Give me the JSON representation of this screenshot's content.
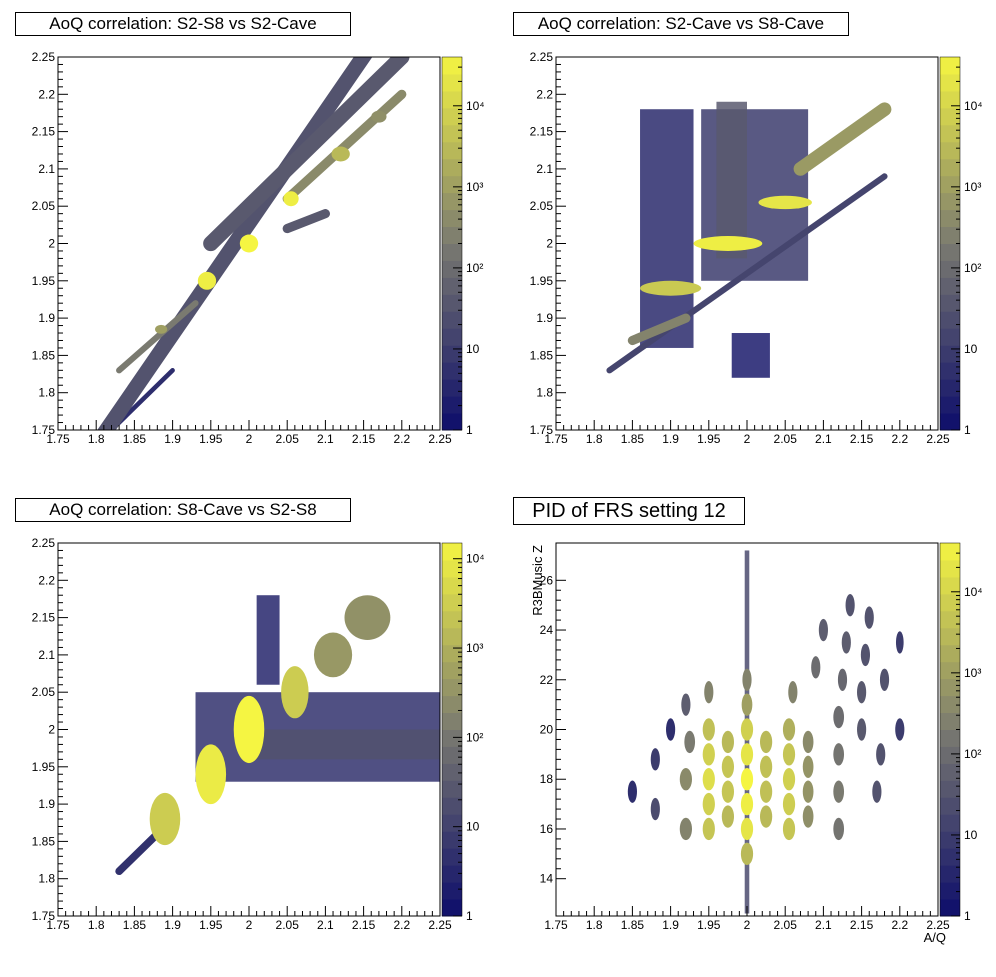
{
  "chart_data": [
    {
      "type": "heatmap",
      "title": "AoQ correlation: S2-S8 vs S2-Cave",
      "xlabel": "",
      "ylabel": "",
      "xlim": [
        1.75,
        2.25
      ],
      "ylim": [
        1.75,
        2.25
      ],
      "x_ticks": [
        "1.75",
        "1.8",
        "1.85",
        "1.9",
        "1.95",
        "2",
        "2.05",
        "2.1",
        "2.15",
        "2.2",
        "2.25"
      ],
      "y_ticks": [
        "1.75",
        "1.8",
        "1.85",
        "1.9",
        "1.95",
        "2",
        "2.05",
        "2.1",
        "2.15",
        "2.2",
        "2.25"
      ],
      "colorbar_ticks": [
        {
          "value": 1,
          "label": "1"
        },
        {
          "value": 10,
          "label": "10"
        },
        {
          "value": 100,
          "label": "10²"
        },
        {
          "value": 1000,
          "label": "10³"
        },
        {
          "value": 10000,
          "label": "10⁴"
        }
      ],
      "z_max": 40000,
      "colors": {
        "low": "#0d0d6b",
        "mid": "#7a7a70",
        "high": "#f5f542"
      },
      "features": [
        {
          "kind": "band",
          "x1": 1.78,
          "y1": 1.7,
          "x2": 2.25,
          "y2": 2.4,
          "width": 0.02,
          "z": 30
        },
        {
          "kind": "band",
          "x1": 1.95,
          "y1": 2.0,
          "x2": 2.2,
          "y2": 2.25,
          "width": 0.02,
          "z": 40
        },
        {
          "kind": "band",
          "x1": 2.05,
          "y1": 2.06,
          "x2": 2.2,
          "y2": 2.2,
          "width": 0.012,
          "z": 400
        },
        {
          "kind": "band",
          "x1": 2.05,
          "y1": 2.02,
          "x2": 2.1,
          "y2": 2.04,
          "width": 0.012,
          "z": 40
        },
        {
          "kind": "band",
          "x1": 1.83,
          "y1": 1.83,
          "x2": 1.93,
          "y2": 1.92,
          "width": 0.008,
          "z": 200
        },
        {
          "kind": "band",
          "x1": 1.82,
          "y1": 1.75,
          "x2": 1.9,
          "y2": 1.83,
          "width": 0.006,
          "z": 5
        },
        {
          "kind": "blob",
          "x": 1.885,
          "y": 1.885,
          "rx": 0.008,
          "ry": 0.006,
          "z": 1000
        },
        {
          "kind": "blob",
          "x": 1.945,
          "y": 1.95,
          "rx": 0.012,
          "ry": 0.012,
          "z": 30000
        },
        {
          "kind": "blob",
          "x": 2.0,
          "y": 2.0,
          "rx": 0.012,
          "ry": 0.012,
          "z": 40000
        },
        {
          "kind": "blob",
          "x": 2.055,
          "y": 2.06,
          "rx": 0.01,
          "ry": 0.01,
          "z": 30000
        },
        {
          "kind": "blob",
          "x": 2.12,
          "y": 2.12,
          "rx": 0.012,
          "ry": 0.01,
          "z": 3000
        },
        {
          "kind": "blob",
          "x": 2.17,
          "y": 2.17,
          "rx": 0.01,
          "ry": 0.008,
          "z": 500
        }
      ]
    },
    {
      "type": "heatmap",
      "title": "AoQ correlation: S2-Cave vs S8-Cave",
      "xlabel": "",
      "ylabel": "",
      "xlim": [
        1.75,
        2.25
      ],
      "ylim": [
        1.75,
        2.25
      ],
      "x_ticks": [
        "1.75",
        "1.8",
        "1.85",
        "1.9",
        "1.95",
        "2",
        "2.05",
        "2.1",
        "2.15",
        "2.2",
        "2.25"
      ],
      "y_ticks": [
        "1.75",
        "1.8",
        "1.85",
        "1.9",
        "1.95",
        "2",
        "2.05",
        "2.1",
        "2.15",
        "2.2",
        "2.25"
      ],
      "colorbar_ticks": [
        {
          "value": 1,
          "label": "1"
        },
        {
          "value": 10,
          "label": "10"
        },
        {
          "value": 100,
          "label": "10²"
        },
        {
          "value": 1000,
          "label": "10³"
        },
        {
          "value": 10000,
          "label": "10⁴"
        }
      ],
      "z_max": 40000,
      "colors": {
        "low": "#0d0d6b",
        "mid": "#7a7a70",
        "high": "#f5f542"
      },
      "features": [
        {
          "kind": "rect",
          "x1": 1.86,
          "y1": 1.86,
          "x2": 1.93,
          "y2": 2.18,
          "z": 4
        },
        {
          "kind": "rect",
          "x1": 1.94,
          "y1": 1.95,
          "x2": 2.08,
          "y2": 2.18,
          "z": 10
        },
        {
          "kind": "rect",
          "x1": 1.96,
          "y1": 1.98,
          "x2": 2.0,
          "y2": 2.19,
          "z": 40
        },
        {
          "kind": "band",
          "x1": 1.85,
          "y1": 1.87,
          "x2": 1.92,
          "y2": 1.9,
          "width": 0.012,
          "z": 300
        },
        {
          "kind": "blob",
          "x": 1.9,
          "y": 1.94,
          "rx": 0.04,
          "ry": 0.01,
          "z": 6000
        },
        {
          "kind": "blob",
          "x": 1.975,
          "y": 2.0,
          "rx": 0.045,
          "ry": 0.01,
          "z": 30000
        },
        {
          "kind": "blob",
          "x": 2.05,
          "y": 2.055,
          "rx": 0.035,
          "ry": 0.009,
          "z": 20000
        },
        {
          "kind": "band",
          "x1": 2.07,
          "y1": 2.1,
          "x2": 2.18,
          "y2": 2.18,
          "width": 0.018,
          "z": 800
        },
        {
          "kind": "band",
          "x1": 1.82,
          "y1": 1.83,
          "x2": 2.18,
          "y2": 2.09,
          "width": 0.008,
          "z": 15
        },
        {
          "kind": "rect",
          "x1": 1.98,
          "y1": 1.82,
          "x2": 2.03,
          "y2": 1.88,
          "z": 2
        }
      ]
    },
    {
      "type": "heatmap",
      "title": "AoQ correlation: S8-Cave vs S2-S8",
      "xlabel": "",
      "ylabel": "",
      "xlim": [
        1.75,
        2.25
      ],
      "ylim": [
        1.75,
        2.25
      ],
      "x_ticks": [
        "1.75",
        "1.8",
        "1.85",
        "1.9",
        "1.95",
        "2",
        "2.05",
        "2.1",
        "2.15",
        "2.2",
        "2.25"
      ],
      "y_ticks": [
        "1.75",
        "1.8",
        "1.85",
        "1.9",
        "1.95",
        "2",
        "2.05",
        "2.1",
        "2.15",
        "2.2",
        "2.25"
      ],
      "colorbar_ticks": [
        {
          "value": 1,
          "label": "1"
        },
        {
          "value": 10,
          "label": "10"
        },
        {
          "value": 100,
          "label": "10²"
        },
        {
          "value": 1000,
          "label": "10³"
        },
        {
          "value": 10000,
          "label": "10⁴"
        }
      ],
      "z_max": 15000,
      "colors": {
        "low": "#0d0d6b",
        "mid": "#7a7a70",
        "high": "#f5f542"
      },
      "features": [
        {
          "kind": "rect",
          "x1": 1.93,
          "y1": 1.93,
          "x2": 2.25,
          "y2": 2.05,
          "z": 5
        },
        {
          "kind": "rect",
          "x1": 2.0,
          "y1": 1.96,
          "x2": 2.25,
          "y2": 2.0,
          "z": 20
        },
        {
          "kind": "rect",
          "x1": 2.01,
          "y1": 2.06,
          "x2": 2.04,
          "y2": 2.18,
          "z": 3
        },
        {
          "kind": "band",
          "x1": 1.83,
          "y1": 1.81,
          "x2": 1.9,
          "y2": 1.88,
          "width": 0.01,
          "z": 5
        },
        {
          "kind": "blob",
          "x": 1.89,
          "y": 1.88,
          "rx": 0.02,
          "ry": 0.035,
          "z": 3000
        },
        {
          "kind": "blob",
          "x": 1.95,
          "y": 1.94,
          "rx": 0.02,
          "ry": 0.04,
          "z": 10000
        },
        {
          "kind": "blob",
          "x": 2.0,
          "y": 2.0,
          "rx": 0.02,
          "ry": 0.045,
          "z": 15000
        },
        {
          "kind": "blob",
          "x": 2.06,
          "y": 2.05,
          "rx": 0.018,
          "ry": 0.035,
          "z": 3000
        },
        {
          "kind": "blob",
          "x": 2.11,
          "y": 2.1,
          "rx": 0.025,
          "ry": 0.03,
          "z": 400
        },
        {
          "kind": "blob",
          "x": 2.155,
          "y": 2.15,
          "rx": 0.03,
          "ry": 0.03,
          "z": 300
        }
      ]
    },
    {
      "type": "heatmap",
      "title": "PID of FRS setting 12",
      "xlabel": "A/Q",
      "ylabel": "R3BMusic Z",
      "xlim": [
        1.75,
        2.25
      ],
      "ylim": [
        12.5,
        27.5
      ],
      "x_ticks": [
        "1.75",
        "1.8",
        "1.85",
        "1.9",
        "1.95",
        "2",
        "2.05",
        "2.1",
        "2.15",
        "2.2",
        "2.25"
      ],
      "y_ticks": [
        "14",
        "16",
        "18",
        "20",
        "22",
        "24",
        "26"
      ],
      "colorbar_ticks": [
        {
          "value": 1,
          "label": "1"
        },
        {
          "value": 10,
          "label": "10"
        },
        {
          "value": 100,
          "label": "10²"
        },
        {
          "value": 1000,
          "label": "10³"
        },
        {
          "value": 10000,
          "label": "10⁴"
        }
      ],
      "z_max": 40000,
      "colors": {
        "low": "#0d0d6b",
        "mid": "#7a7a70",
        "high": "#f5f542"
      },
      "features": [
        {
          "kind": "blob",
          "x": 1.85,
          "y": 17.5,
          "rx": 0.006,
          "ry": 0.45,
          "z": 5
        },
        {
          "kind": "blob",
          "x": 1.88,
          "y": 16.8,
          "rx": 0.006,
          "ry": 0.45,
          "z": 20
        },
        {
          "kind": "blob",
          "x": 1.88,
          "y": 18.8,
          "rx": 0.006,
          "ry": 0.45,
          "z": 10
        },
        {
          "kind": "blob",
          "x": 1.9,
          "y": 20.0,
          "rx": 0.006,
          "ry": 0.45,
          "z": 5
        },
        {
          "kind": "blob",
          "x": 1.92,
          "y": 16.0,
          "rx": 0.008,
          "ry": 0.45,
          "z": 300
        },
        {
          "kind": "blob",
          "x": 1.92,
          "y": 18.0,
          "rx": 0.008,
          "ry": 0.45,
          "z": 400
        },
        {
          "kind": "blob",
          "x": 1.925,
          "y": 19.5,
          "rx": 0.007,
          "ry": 0.45,
          "z": 200
        },
        {
          "kind": "blob",
          "x": 1.92,
          "y": 21.0,
          "rx": 0.006,
          "ry": 0.45,
          "z": 50
        },
        {
          "kind": "blob",
          "x": 1.95,
          "y": 16.0,
          "rx": 0.008,
          "ry": 0.45,
          "z": 5000
        },
        {
          "kind": "blob",
          "x": 1.95,
          "y": 17.0,
          "rx": 0.008,
          "ry": 0.45,
          "z": 8000
        },
        {
          "kind": "blob",
          "x": 1.95,
          "y": 18.0,
          "rx": 0.008,
          "ry": 0.45,
          "z": 15000
        },
        {
          "kind": "blob",
          "x": 1.95,
          "y": 19.0,
          "rx": 0.008,
          "ry": 0.45,
          "z": 8000
        },
        {
          "kind": "blob",
          "x": 1.95,
          "y": 20.0,
          "rx": 0.008,
          "ry": 0.45,
          "z": 4000
        },
        {
          "kind": "blob",
          "x": 1.95,
          "y": 21.5,
          "rx": 0.006,
          "ry": 0.45,
          "z": 300
        },
        {
          "kind": "blob",
          "x": 1.975,
          "y": 16.5,
          "rx": 0.008,
          "ry": 0.45,
          "z": 3000
        },
        {
          "kind": "blob",
          "x": 1.975,
          "y": 17.5,
          "rx": 0.008,
          "ry": 0.45,
          "z": 5000
        },
        {
          "kind": "blob",
          "x": 1.975,
          "y": 18.5,
          "rx": 0.008,
          "ry": 0.45,
          "z": 5000
        },
        {
          "kind": "blob",
          "x": 1.975,
          "y": 19.5,
          "rx": 0.008,
          "ry": 0.45,
          "z": 3000
        },
        {
          "kind": "blob",
          "x": 2.0,
          "y": 15.0,
          "rx": 0.008,
          "ry": 0.45,
          "z": 3000
        },
        {
          "kind": "blob",
          "x": 2.0,
          "y": 16.0,
          "rx": 0.008,
          "ry": 0.45,
          "z": 20000
        },
        {
          "kind": "blob",
          "x": 2.0,
          "y": 17.0,
          "rx": 0.008,
          "ry": 0.45,
          "z": 30000
        },
        {
          "kind": "blob",
          "x": 2.0,
          "y": 18.0,
          "rx": 0.008,
          "ry": 0.45,
          "z": 40000
        },
        {
          "kind": "blob",
          "x": 2.0,
          "y": 19.0,
          "rx": 0.008,
          "ry": 0.45,
          "z": 20000
        },
        {
          "kind": "blob",
          "x": 2.0,
          "y": 20.0,
          "rx": 0.008,
          "ry": 0.45,
          "z": 8000
        },
        {
          "kind": "blob",
          "x": 2.0,
          "y": 21.0,
          "rx": 0.007,
          "ry": 0.45,
          "z": 1000
        },
        {
          "kind": "blob",
          "x": 2.0,
          "y": 22.0,
          "rx": 0.006,
          "ry": 0.45,
          "z": 300
        },
        {
          "kind": "rect",
          "x1": 1.997,
          "y1": 12.6,
          "x2": 2.003,
          "y2": 27.2,
          "z": 20
        },
        {
          "kind": "blob",
          "x": 2.025,
          "y": 16.5,
          "rx": 0.008,
          "ry": 0.45,
          "z": 3000
        },
        {
          "kind": "blob",
          "x": 2.025,
          "y": 17.5,
          "rx": 0.008,
          "ry": 0.45,
          "z": 4000
        },
        {
          "kind": "blob",
          "x": 2.025,
          "y": 18.5,
          "rx": 0.008,
          "ry": 0.45,
          "z": 4000
        },
        {
          "kind": "blob",
          "x": 2.025,
          "y": 19.5,
          "rx": 0.008,
          "ry": 0.45,
          "z": 3000
        },
        {
          "kind": "blob",
          "x": 2.055,
          "y": 16.0,
          "rx": 0.008,
          "ry": 0.45,
          "z": 5000
        },
        {
          "kind": "blob",
          "x": 2.055,
          "y": 17.0,
          "rx": 0.008,
          "ry": 0.45,
          "z": 7000
        },
        {
          "kind": "blob",
          "x": 2.055,
          "y": 18.0,
          "rx": 0.008,
          "ry": 0.45,
          "z": 8000
        },
        {
          "kind": "blob",
          "x": 2.055,
          "y": 19.0,
          "rx": 0.008,
          "ry": 0.45,
          "z": 5000
        },
        {
          "kind": "blob",
          "x": 2.055,
          "y": 20.0,
          "rx": 0.008,
          "ry": 0.45,
          "z": 2000
        },
        {
          "kind": "blob",
          "x": 2.06,
          "y": 21.5,
          "rx": 0.006,
          "ry": 0.45,
          "z": 300
        },
        {
          "kind": "blob",
          "x": 2.08,
          "y": 16.5,
          "rx": 0.007,
          "ry": 0.45,
          "z": 500
        },
        {
          "kind": "blob",
          "x": 2.08,
          "y": 17.5,
          "rx": 0.007,
          "ry": 0.45,
          "z": 600
        },
        {
          "kind": "blob",
          "x": 2.08,
          "y": 18.5,
          "rx": 0.007,
          "ry": 0.45,
          "z": 600
        },
        {
          "kind": "blob",
          "x": 2.08,
          "y": 19.5,
          "rx": 0.007,
          "ry": 0.45,
          "z": 400
        },
        {
          "kind": "blob",
          "x": 2.09,
          "y": 22.5,
          "rx": 0.006,
          "ry": 0.45,
          "z": 100
        },
        {
          "kind": "blob",
          "x": 2.1,
          "y": 24.0,
          "rx": 0.006,
          "ry": 0.45,
          "z": 50
        },
        {
          "kind": "blob",
          "x": 2.12,
          "y": 16.0,
          "rx": 0.007,
          "ry": 0.45,
          "z": 150
        },
        {
          "kind": "blob",
          "x": 2.12,
          "y": 17.5,
          "rx": 0.007,
          "ry": 0.45,
          "z": 200
        },
        {
          "kind": "blob",
          "x": 2.12,
          "y": 19.0,
          "rx": 0.007,
          "ry": 0.45,
          "z": 150
        },
        {
          "kind": "blob",
          "x": 2.12,
          "y": 20.5,
          "rx": 0.007,
          "ry": 0.45,
          "z": 100
        },
        {
          "kind": "blob",
          "x": 2.125,
          "y": 22.0,
          "rx": 0.006,
          "ry": 0.45,
          "z": 80
        },
        {
          "kind": "blob",
          "x": 2.13,
          "y": 23.5,
          "rx": 0.006,
          "ry": 0.45,
          "z": 50
        },
        {
          "kind": "blob",
          "x": 2.135,
          "y": 25.0,
          "rx": 0.006,
          "ry": 0.45,
          "z": 30
        },
        {
          "kind": "blob",
          "x": 2.15,
          "y": 20.0,
          "rx": 0.006,
          "ry": 0.45,
          "z": 40
        },
        {
          "kind": "blob",
          "x": 2.15,
          "y": 21.5,
          "rx": 0.006,
          "ry": 0.45,
          "z": 40
        },
        {
          "kind": "blob",
          "x": 2.155,
          "y": 23.0,
          "rx": 0.006,
          "ry": 0.45,
          "z": 30
        },
        {
          "kind": "blob",
          "x": 2.16,
          "y": 24.5,
          "rx": 0.006,
          "ry": 0.45,
          "z": 30
        },
        {
          "kind": "blob",
          "x": 2.17,
          "y": 17.5,
          "rx": 0.006,
          "ry": 0.45,
          "z": 30
        },
        {
          "kind": "blob",
          "x": 2.175,
          "y": 19.0,
          "rx": 0.006,
          "ry": 0.45,
          "z": 30
        },
        {
          "kind": "blob",
          "x": 2.18,
          "y": 22.0,
          "rx": 0.006,
          "ry": 0.45,
          "z": 30
        },
        {
          "kind": "blob",
          "x": 2.2,
          "y": 20.0,
          "rx": 0.006,
          "ry": 0.45,
          "z": 10
        },
        {
          "kind": "blob",
          "x": 2.2,
          "y": 23.5,
          "rx": 0.005,
          "ry": 0.45,
          "z": 10
        }
      ]
    }
  ]
}
